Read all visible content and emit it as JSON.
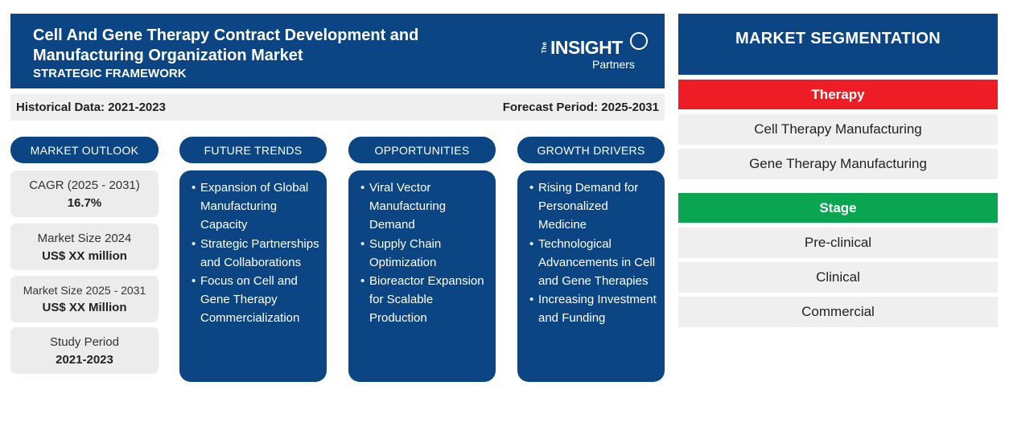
{
  "header": {
    "title": "Cell And Gene Therapy Contract Development and Manufacturing Organization Market",
    "subtitle": "STRATEGIC FRAMEWORK",
    "logo": {
      "the": "The",
      "insight": "INSIGHT",
      "partners": "Partners"
    }
  },
  "band": {
    "historical": "Historical Data: 2021-2023",
    "forecast": "Forecast Period: 2025-2031"
  },
  "columns": {
    "outlook": "MARKET OUTLOOK",
    "trends": "FUTURE TRENDS",
    "opportunities": "OPPORTUNITIES",
    "drivers": "GROWTH DRIVERS"
  },
  "outlook": [
    {
      "label": "CAGR (2025 - 2031)",
      "value": "16.7%"
    },
    {
      "label": "Market Size 2024",
      "value": "US$ XX million"
    },
    {
      "label": "Market Size 2025 - 2031",
      "value": "US$ XX Million"
    },
    {
      "label": "Study Period",
      "value": "2021-2023"
    }
  ],
  "trends": [
    "Expansion of Global Manufacturing Capacity",
    "Strategic Partnerships and Collaborations",
    "Focus on Cell and Gene Therapy Commercialization"
  ],
  "opportunities": [
    "Viral Vector Manufacturing Demand",
    "Supply Chain Optimization",
    "Bioreactor Expansion for Scalable Production"
  ],
  "drivers": [
    "Rising Demand for Personalized Medicine",
    "Technological Advancements in Cell and Gene Therapies",
    "Increasing Investment and Funding"
  ],
  "segmentation": {
    "title": "MARKET SEGMENTATION",
    "therapy": {
      "label": "Therapy",
      "color": "#ee1c25",
      "items": [
        "Cell Therapy Manufacturing",
        "Gene Therapy Manufacturing"
      ]
    },
    "stage": {
      "label": "Stage",
      "color": "#0aa550",
      "items": [
        "Pre-clinical",
        "Clinical",
        "Commercial"
      ]
    }
  }
}
